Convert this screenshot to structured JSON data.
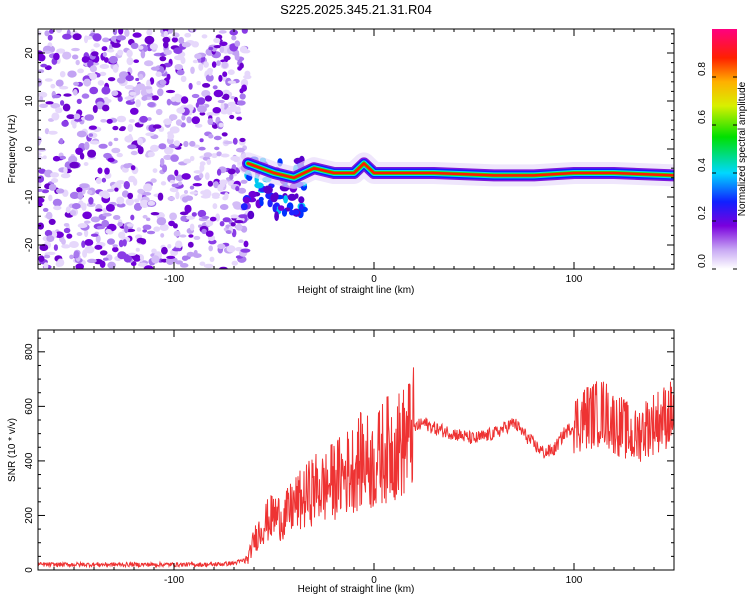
{
  "title": "S225.2025.345.21.31.R04",
  "chart_data": [
    {
      "type": "heatmap",
      "name": "spectrogram",
      "xlabel": "Height of straight line (km)",
      "ylabel": "Frequency (Hz)",
      "xlim": [
        -168,
        150
      ],
      "ylim": [
        -25,
        25
      ],
      "xticks": [
        -100,
        0,
        100
      ],
      "yticks": [
        -20,
        -10,
        0,
        10,
        20
      ],
      "colorbar": {
        "label": "Normalized spectral amplitude",
        "range": [
          0,
          1
        ],
        "ticks": [
          "0.0",
          "0.2",
          "0.4",
          "0.6",
          "0.8"
        ]
      },
      "noise_region_x": [
        -168,
        -63
      ],
      "signal_line": [
        {
          "x": -63,
          "y": -3
        },
        {
          "x": -50,
          "y": -5
        },
        {
          "x": -40,
          "y": -6
        },
        {
          "x": -30,
          "y": -4
        },
        {
          "x": -20,
          "y": -5
        },
        {
          "x": -10,
          "y": -5
        },
        {
          "x": -5,
          "y": -3
        },
        {
          "x": 0,
          "y": -5
        },
        {
          "x": 10,
          "y": -5
        },
        {
          "x": 30,
          "y": -5
        },
        {
          "x": 60,
          "y": -5.5
        },
        {
          "x": 80,
          "y": -5.5
        },
        {
          "x": 100,
          "y": -5
        },
        {
          "x": 120,
          "y": -5
        },
        {
          "x": 150,
          "y": -5.5
        }
      ]
    },
    {
      "type": "line",
      "name": "snr",
      "xlabel": "Height of straight line (km)",
      "ylabel": "SNR (10 * v/v)",
      "xlim": [
        -168,
        150
      ],
      "ylim": [
        0,
        880
      ],
      "xticks": [
        -100,
        0,
        100
      ],
      "yticks": [
        0,
        200,
        400,
        600,
        800
      ],
      "color": "#ee3333",
      "series": [
        {
          "name": "SNR",
          "points": [
            {
              "x": -168,
              "y": 20
            },
            {
              "x": -140,
              "y": 20
            },
            {
              "x": -110,
              "y": 20
            },
            {
              "x": -80,
              "y": 20
            },
            {
              "x": -70,
              "y": 25
            },
            {
              "x": -63,
              "y": 40
            },
            {
              "x": -60,
              "y": 110
            },
            {
              "x": -55,
              "y": 170
            },
            {
              "x": -50,
              "y": 200
            },
            {
              "x": -45,
              "y": 190
            },
            {
              "x": -40,
              "y": 240
            },
            {
              "x": -35,
              "y": 260
            },
            {
              "x": -30,
              "y": 300
            },
            {
              "x": -25,
              "y": 300
            },
            {
              "x": -20,
              "y": 330
            },
            {
              "x": -15,
              "y": 350
            },
            {
              "x": -10,
              "y": 380
            },
            {
              "x": -5,
              "y": 410
            },
            {
              "x": 0,
              "y": 380
            },
            {
              "x": 5,
              "y": 440
            },
            {
              "x": 10,
              "y": 450
            },
            {
              "x": 15,
              "y": 470
            },
            {
              "x": 20,
              "y": 520
            },
            {
              "x": 25,
              "y": 540
            },
            {
              "x": 30,
              "y": 520
            },
            {
              "x": 40,
              "y": 500
            },
            {
              "x": 50,
              "y": 480
            },
            {
              "x": 60,
              "y": 500
            },
            {
              "x": 65,
              "y": 520
            },
            {
              "x": 70,
              "y": 540
            },
            {
              "x": 75,
              "y": 500
            },
            {
              "x": 80,
              "y": 460
            },
            {
              "x": 85,
              "y": 430
            },
            {
              "x": 90,
              "y": 440
            },
            {
              "x": 95,
              "y": 500
            },
            {
              "x": 100,
              "y": 530
            },
            {
              "x": 105,
              "y": 560
            },
            {
              "x": 110,
              "y": 570
            },
            {
              "x": 115,
              "y": 580
            },
            {
              "x": 120,
              "y": 540
            },
            {
              "x": 125,
              "y": 520
            },
            {
              "x": 130,
              "y": 480
            },
            {
              "x": 135,
              "y": 520
            },
            {
              "x": 140,
              "y": 540
            },
            {
              "x": 145,
              "y": 560
            },
            {
              "x": 150,
              "y": 580
            }
          ]
        }
      ]
    }
  ]
}
